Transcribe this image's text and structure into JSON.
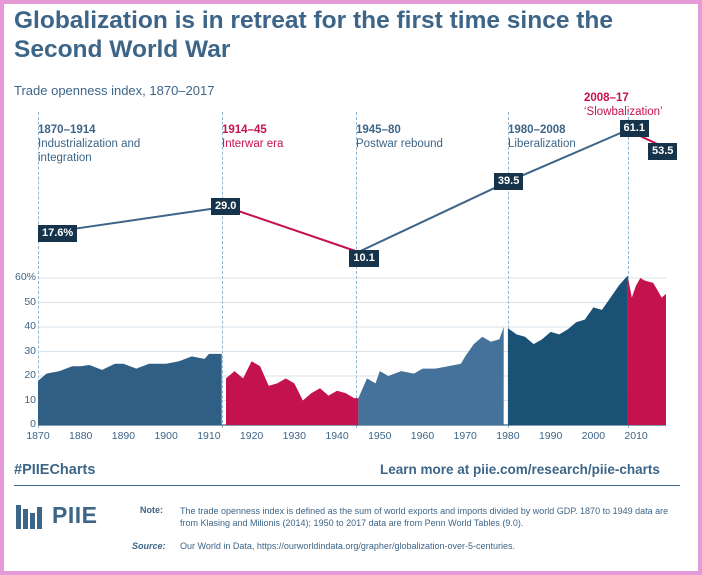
{
  "title": "Globalization is in retreat for the first time since the Second World War",
  "subtitle": "Trade openness index, 1870–2017",
  "eras": [
    {
      "years": "1870–1914",
      "label": "Industrialization and integration",
      "color": "blue"
    },
    {
      "years": "1914–45",
      "label": "Interwar era",
      "color": "red"
    },
    {
      "years": "1945–80",
      "label": "Postwar rebound",
      "color": "blue"
    },
    {
      "years": "1980–2008",
      "label": "Liberalization",
      "color": "blue"
    },
    {
      "years": "2008–17",
      "label": "‘Slowbalization’",
      "color": "red"
    }
  ],
  "footer": {
    "hashtag": "#PIIECharts",
    "learn_more": "Learn more at piie.com/research/piie-charts",
    "logo_text": "PIIE",
    "note_label": "Note:",
    "note_text": "The trade openness index is defined as the sum of world exports and imports divided by world GDP. 1870 to 1949 data are from Klasing and Milionis (2014); 1950 to 2017 data are from Penn World Tables (9.0).",
    "source_label": "Source:",
    "source_text": "Our World in Data, https://ourworldindata.org/grapher/globalization-over-5-centuries."
  },
  "colors": {
    "blue": "#3d6588",
    "red": "#c4124f",
    "dark": "#15344b",
    "darkblue": "#1a5276"
  },
  "chart_data": [
    {
      "type": "line",
      "description_role": "era averages",
      "points": [
        {
          "x": 1870,
          "y": 17.6,
          "label": "17.6%"
        },
        {
          "x": 1914,
          "y": 29.0,
          "label": "29.0"
        },
        {
          "x": 1945,
          "y": 10.1,
          "label": "10.1"
        },
        {
          "x": 1980,
          "y": 39.5,
          "label": "39.5"
        },
        {
          "x": 2008,
          "y": 61.1,
          "label": "61.1"
        },
        {
          "x": 2017,
          "y": 53.5,
          "label": "53.5"
        }
      ]
    },
    {
      "type": "area",
      "xlim": [
        1870,
        2017
      ],
      "ylim": [
        0,
        60
      ],
      "yticks": [
        0,
        10,
        20,
        30,
        40,
        50,
        60
      ],
      "ytick_labels": [
        "0",
        "10",
        "20",
        "30",
        "40",
        "50",
        "60%"
      ],
      "xticks": [
        1870,
        1880,
        1890,
        1900,
        1910,
        1920,
        1930,
        1940,
        1950,
        1960,
        1970,
        1980,
        1990,
        2000,
        2010
      ],
      "series": [
        {
          "segment": "1870–1914",
          "color": "#2f5f85",
          "x": [
            1870,
            1872,
            1875,
            1878,
            1880,
            1882,
            1885,
            1888,
            1890,
            1893,
            1896,
            1899,
            1900,
            1903,
            1906,
            1909,
            1910,
            1912,
            1913
          ],
          "y": [
            18,
            21,
            22,
            24,
            24,
            24.5,
            22.5,
            25,
            25,
            23,
            25,
            25,
            25,
            26,
            28,
            27,
            29,
            29,
            29
          ]
        },
        {
          "segment": "1914–45",
          "color": "#c4124f",
          "x": [
            1914,
            1916,
            1918,
            1920,
            1922,
            1924,
            1926,
            1928,
            1930,
            1932,
            1934,
            1936,
            1938,
            1940,
            1942,
            1944,
            1945
          ],
          "y": [
            19,
            22,
            19,
            26,
            24,
            16,
            17,
            19,
            17,
            10,
            13,
            15,
            12,
            14,
            13,
            11,
            11
          ]
        },
        {
          "segment": "1945–80",
          "color": "#45729a",
          "x": [
            1945,
            1947,
            1949,
            1950,
            1952,
            1955,
            1958,
            1960,
            1963,
            1966,
            1969,
            1970,
            1972,
            1974,
            1976,
            1978,
            1979
          ],
          "y": [
            11,
            19,
            17,
            22,
            20,
            22,
            21,
            23,
            23,
            24,
            25,
            28,
            33,
            36,
            34,
            35,
            40
          ]
        },
        {
          "segment": "1980–2008",
          "color": "#1a5276",
          "x": [
            1980,
            1982,
            1984,
            1986,
            1988,
            1990,
            1992,
            1994,
            1996,
            1998,
            2000,
            2002,
            2004,
            2006,
            2008
          ],
          "y": [
            39.5,
            37,
            36,
            33,
            35,
            38,
            37,
            39,
            42,
            43,
            48,
            47,
            52,
            57,
            61
          ]
        },
        {
          "segment": "2008–17",
          "color": "#c4124f",
          "x": [
            2008,
            2009,
            2010,
            2011,
            2012,
            2013,
            2014,
            2015,
            2016,
            2017
          ],
          "y": [
            61,
            52,
            57,
            60,
            59,
            58.5,
            58,
            55,
            52,
            53.5
          ]
        }
      ]
    }
  ]
}
